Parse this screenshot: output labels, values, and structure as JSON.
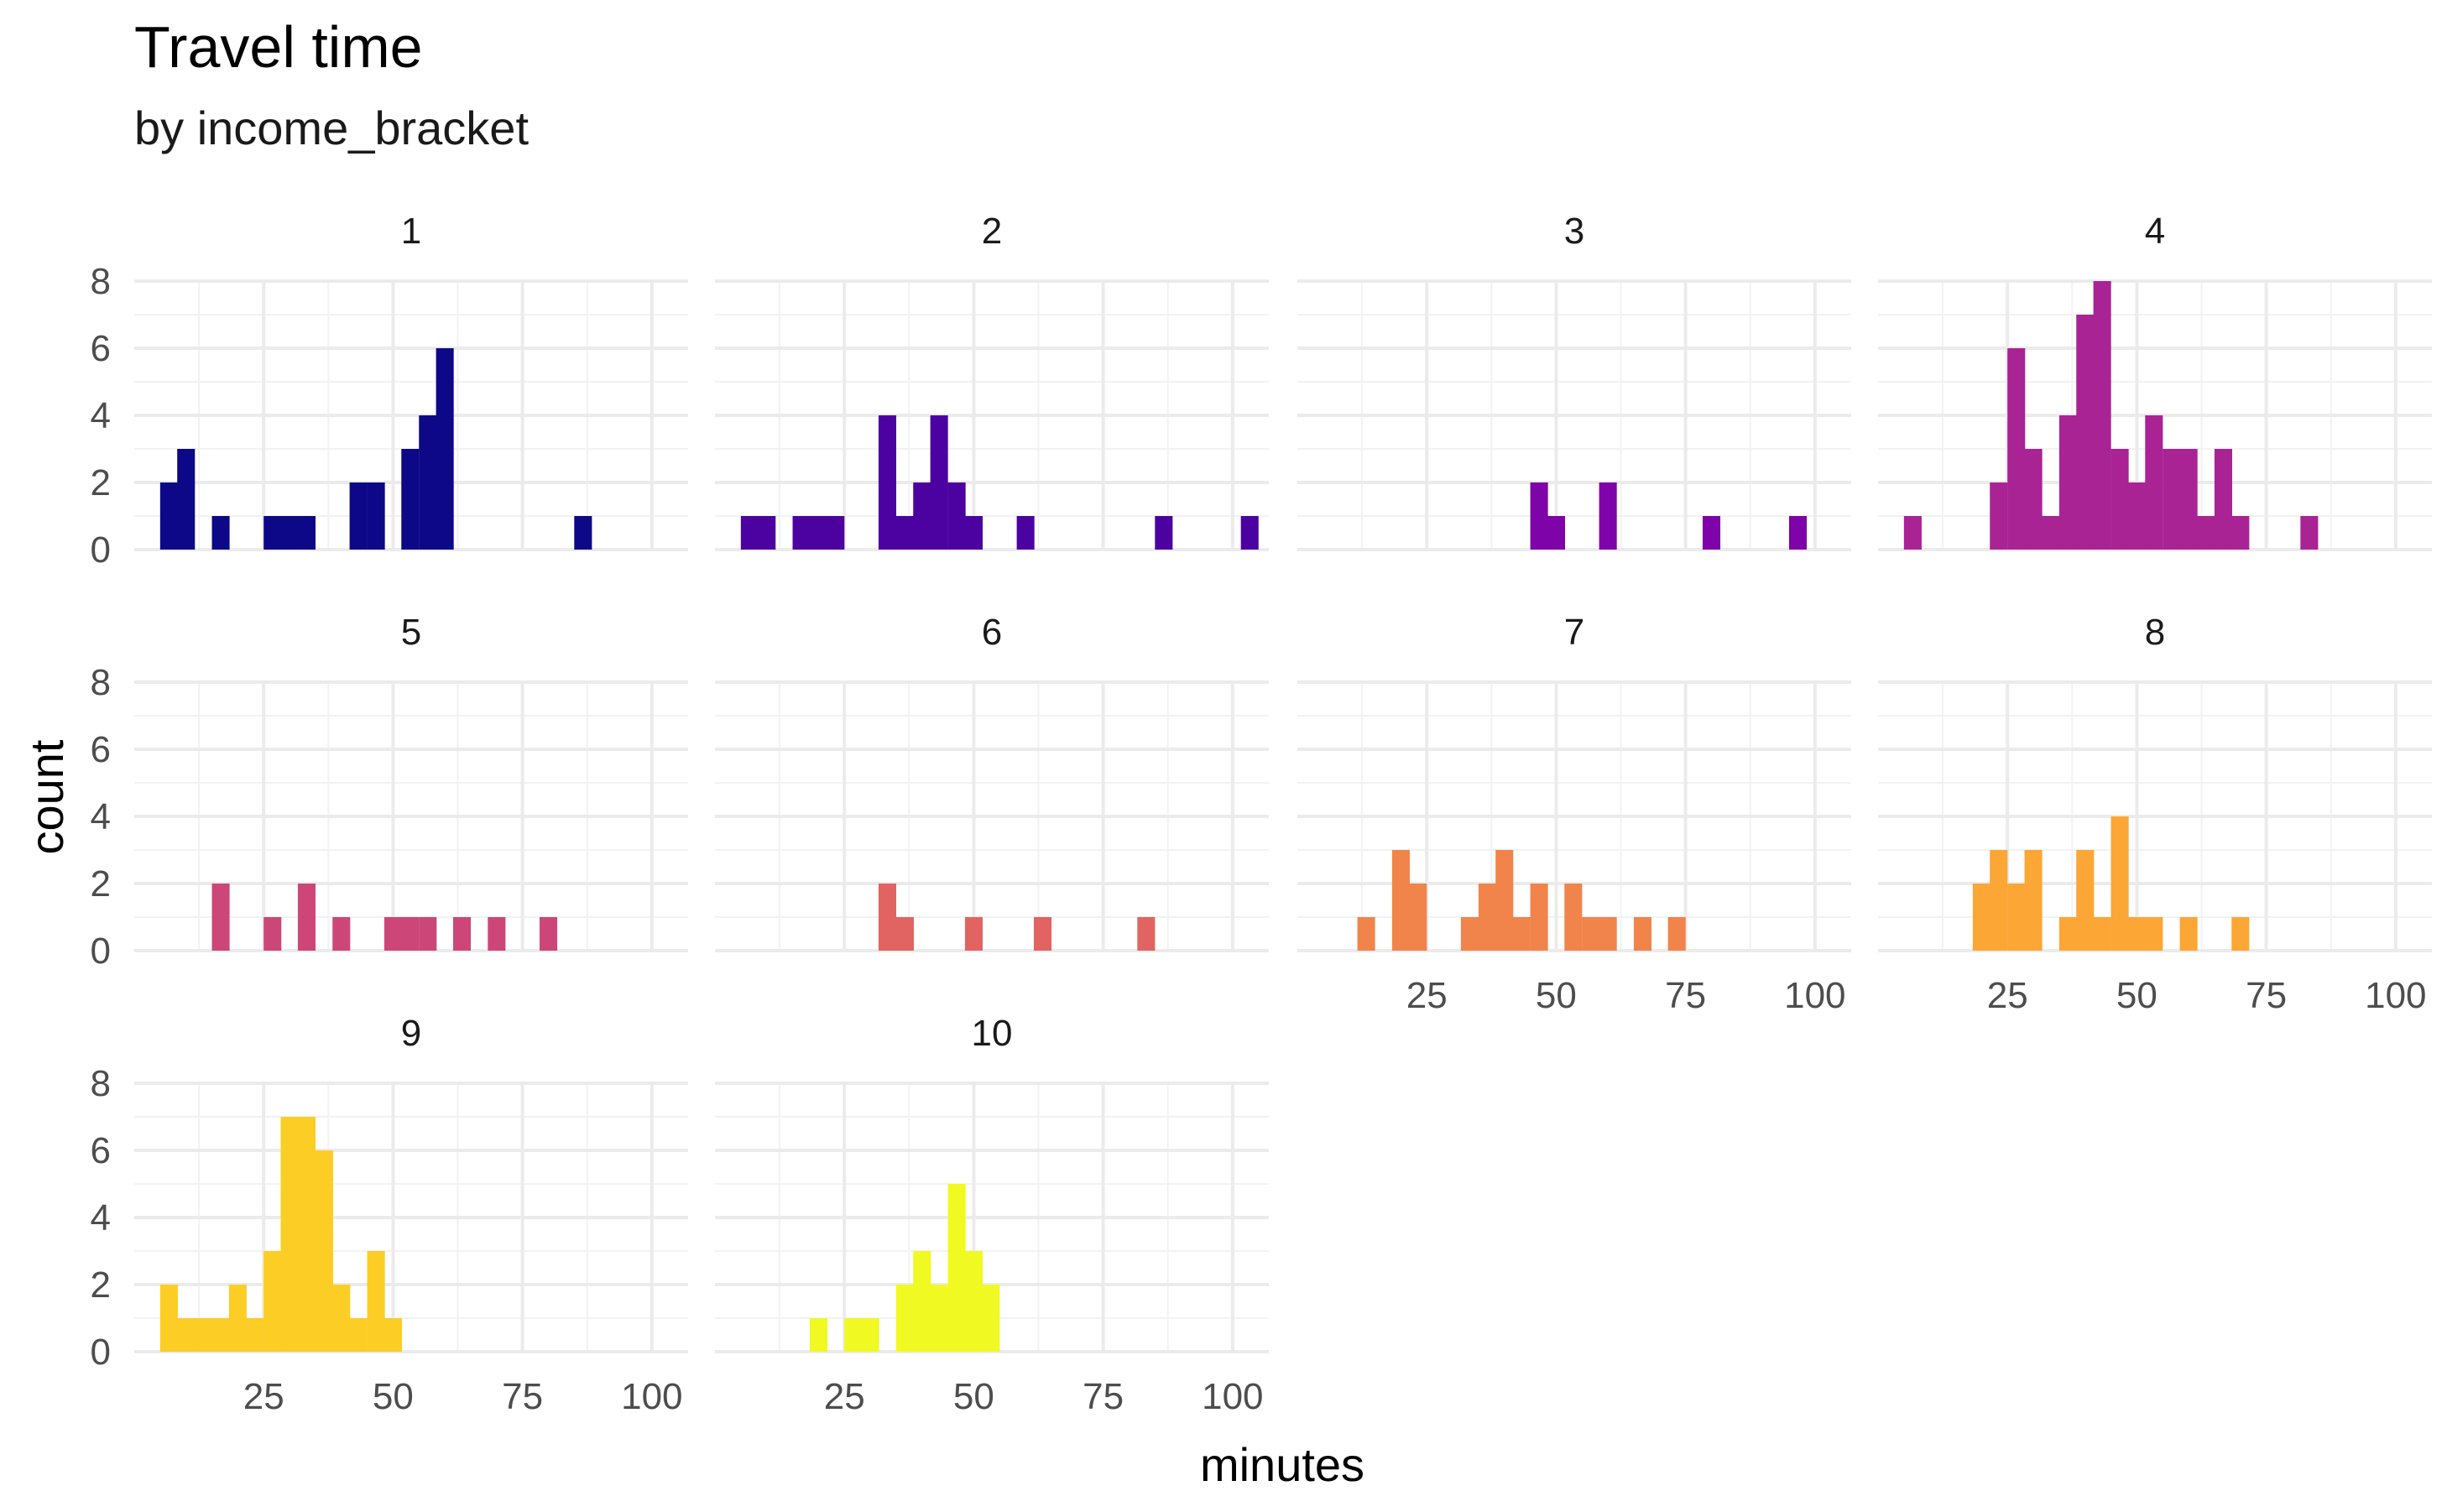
{
  "chart_data": {
    "type": "bar",
    "title": "Travel time",
    "subtitle": "by income_bracket",
    "xlabel": "minutes",
    "ylabel": "count",
    "xlim": [
      0,
      107
    ],
    "ylim": [
      0,
      8
    ],
    "x_ticks": [
      25,
      50,
      75,
      100
    ],
    "y_ticks": [
      0,
      2,
      4,
      6,
      8
    ],
    "bin_width": 3.32,
    "grid": true,
    "legend": "none",
    "facet_labels": [
      "1",
      "2",
      "3",
      "4",
      "5",
      "6",
      "7",
      "8",
      "9",
      "10"
    ],
    "panels": [
      {
        "label": "1",
        "color": "#0d0887",
        "bins": [
          [
            5.0,
            2
          ],
          [
            8.3,
            3
          ],
          [
            15.0,
            1
          ],
          [
            25.0,
            1
          ],
          [
            28.3,
            1
          ],
          [
            31.6,
            1
          ],
          [
            41.6,
            2
          ],
          [
            45.0,
            2
          ],
          [
            51.6,
            3
          ],
          [
            55.0,
            4
          ],
          [
            58.3,
            6
          ],
          [
            85.0,
            1
          ]
        ]
      },
      {
        "label": "2",
        "color": "#4c02a1",
        "bins": [
          [
            5.0,
            1
          ],
          [
            8.3,
            1
          ],
          [
            15.0,
            1
          ],
          [
            18.3,
            1
          ],
          [
            21.6,
            1
          ],
          [
            31.6,
            4
          ],
          [
            35.0,
            1
          ],
          [
            38.3,
            2
          ],
          [
            41.6,
            4
          ],
          [
            45.0,
            2
          ],
          [
            48.3,
            1
          ],
          [
            58.3,
            1
          ],
          [
            85.0,
            1
          ],
          [
            101.6,
            1
          ]
        ]
      },
      {
        "label": "3",
        "color": "#7e03a8",
        "bins": [
          [
            45.0,
            2
          ],
          [
            48.3,
            1
          ],
          [
            58.3,
            2
          ],
          [
            78.3,
            1
          ],
          [
            95.0,
            1
          ]
        ]
      },
      {
        "label": "4",
        "color": "#a92395",
        "bins": [
          [
            5.0,
            1
          ],
          [
            21.6,
            2
          ],
          [
            25.0,
            6
          ],
          [
            28.3,
            3
          ],
          [
            31.6,
            1
          ],
          [
            35.0,
            4
          ],
          [
            38.3,
            7
          ],
          [
            41.6,
            8
          ],
          [
            45.0,
            3
          ],
          [
            48.3,
            2
          ],
          [
            51.6,
            4
          ],
          [
            55.0,
            3
          ],
          [
            58.3,
            3
          ],
          [
            61.6,
            1
          ],
          [
            65.0,
            3
          ],
          [
            68.3,
            1
          ],
          [
            81.6,
            1
          ]
        ]
      },
      {
        "label": "5",
        "color": "#cc4778",
        "bins": [
          [
            15.0,
            2
          ],
          [
            25.0,
            1
          ],
          [
            31.6,
            2
          ],
          [
            38.3,
            1
          ],
          [
            48.3,
            1
          ],
          [
            51.6,
            1
          ],
          [
            55.0,
            1
          ],
          [
            61.6,
            1
          ],
          [
            68.3,
            1
          ],
          [
            78.3,
            1
          ]
        ]
      },
      {
        "label": "6",
        "color": "#e16462",
        "bins": [
          [
            31.6,
            2
          ],
          [
            35.0,
            1
          ],
          [
            48.3,
            1
          ],
          [
            61.6,
            1
          ],
          [
            81.6,
            1
          ]
        ]
      },
      {
        "label": "7",
        "color": "#f1844b",
        "bins": [
          [
            11.6,
            1
          ],
          [
            18.3,
            3
          ],
          [
            21.6,
            2
          ],
          [
            31.6,
            1
          ],
          [
            35.0,
            2
          ],
          [
            38.3,
            3
          ],
          [
            41.6,
            1
          ],
          [
            45.0,
            2
          ],
          [
            51.6,
            2
          ],
          [
            55.0,
            1
          ],
          [
            58.3,
            1
          ],
          [
            65.0,
            1
          ],
          [
            71.6,
            1
          ]
        ]
      },
      {
        "label": "8",
        "color": "#fca636",
        "bins": [
          [
            18.3,
            2
          ],
          [
            21.6,
            3
          ],
          [
            25.0,
            2
          ],
          [
            28.3,
            3
          ],
          [
            35.0,
            1
          ],
          [
            38.3,
            3
          ],
          [
            41.6,
            1
          ],
          [
            45.0,
            4
          ],
          [
            48.3,
            1
          ],
          [
            51.6,
            1
          ],
          [
            58.3,
            1
          ],
          [
            68.3,
            1
          ]
        ]
      },
      {
        "label": "9",
        "color": "#fccd25",
        "bins": [
          [
            5.0,
            2
          ],
          [
            8.3,
            1
          ],
          [
            11.6,
            1
          ],
          [
            15.0,
            1
          ],
          [
            18.3,
            2
          ],
          [
            21.6,
            1
          ],
          [
            25.0,
            3
          ],
          [
            28.3,
            7
          ],
          [
            31.6,
            7
          ],
          [
            35.0,
            6
          ],
          [
            38.3,
            2
          ],
          [
            41.6,
            1
          ],
          [
            45.0,
            3
          ],
          [
            48.3,
            1
          ]
        ]
      },
      {
        "label": "10",
        "color": "#f0f921",
        "bins": [
          [
            18.3,
            1
          ],
          [
            25.0,
            1
          ],
          [
            28.3,
            1
          ],
          [
            35.0,
            2
          ],
          [
            38.3,
            3
          ],
          [
            41.6,
            2
          ],
          [
            45.0,
            5
          ],
          [
            48.3,
            3
          ],
          [
            51.6,
            2
          ]
        ]
      }
    ]
  }
}
